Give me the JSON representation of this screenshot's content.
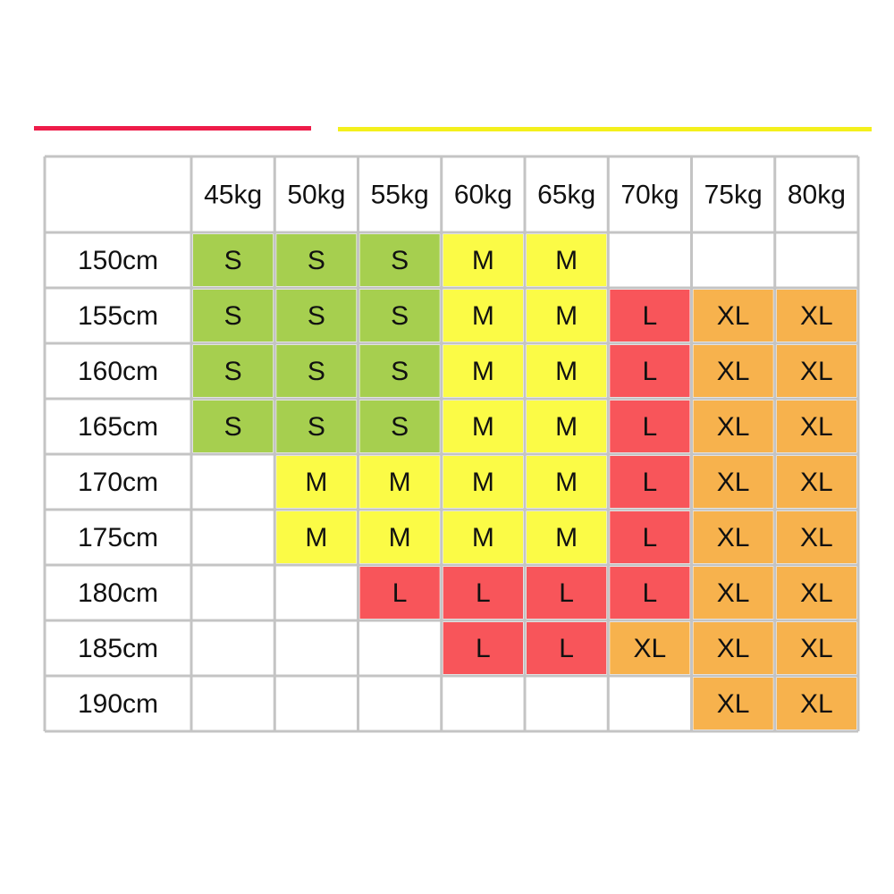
{
  "table": {
    "columns": [
      "45kg",
      "50kg",
      "55kg",
      "60kg",
      "65kg",
      "70kg",
      "75kg",
      "80kg"
    ],
    "rows": [
      {
        "label": "150cm",
        "cells": [
          "S",
          "S",
          "S",
          "M",
          "M",
          null,
          null,
          null
        ]
      },
      {
        "label": "155cm",
        "cells": [
          "S",
          "S",
          "S",
          "M",
          "M",
          "L",
          "XL",
          "XL"
        ]
      },
      {
        "label": "160cm",
        "cells": [
          "S",
          "S",
          "S",
          "M",
          "M",
          "L",
          "XL",
          "XL"
        ]
      },
      {
        "label": "165cm",
        "cells": [
          "S",
          "S",
          "S",
          "M",
          "M",
          "L",
          "XL",
          "XL"
        ]
      },
      {
        "label": "170cm",
        "cells": [
          null,
          "M",
          "M",
          "M",
          "M",
          "L",
          "XL",
          "XL"
        ]
      },
      {
        "label": "175cm",
        "cells": [
          null,
          "M",
          "M",
          "M",
          "M",
          "L",
          "XL",
          "XL"
        ]
      },
      {
        "label": "180cm",
        "cells": [
          null,
          null,
          "L",
          "L",
          "L",
          "L",
          "XL",
          "XL"
        ]
      },
      {
        "label": "185cm",
        "cells": [
          null,
          null,
          null,
          "L",
          "L",
          "XL",
          "XL",
          "XL"
        ]
      },
      {
        "label": "190cm",
        "cells": [
          null,
          null,
          null,
          null,
          null,
          null,
          "XL",
          "XL"
        ]
      }
    ],
    "colors": {
      "S": "#a6cf4f",
      "M": "#fbfb46",
      "L": "#f8555a",
      "XL": "#f7b24d"
    }
  }
}
